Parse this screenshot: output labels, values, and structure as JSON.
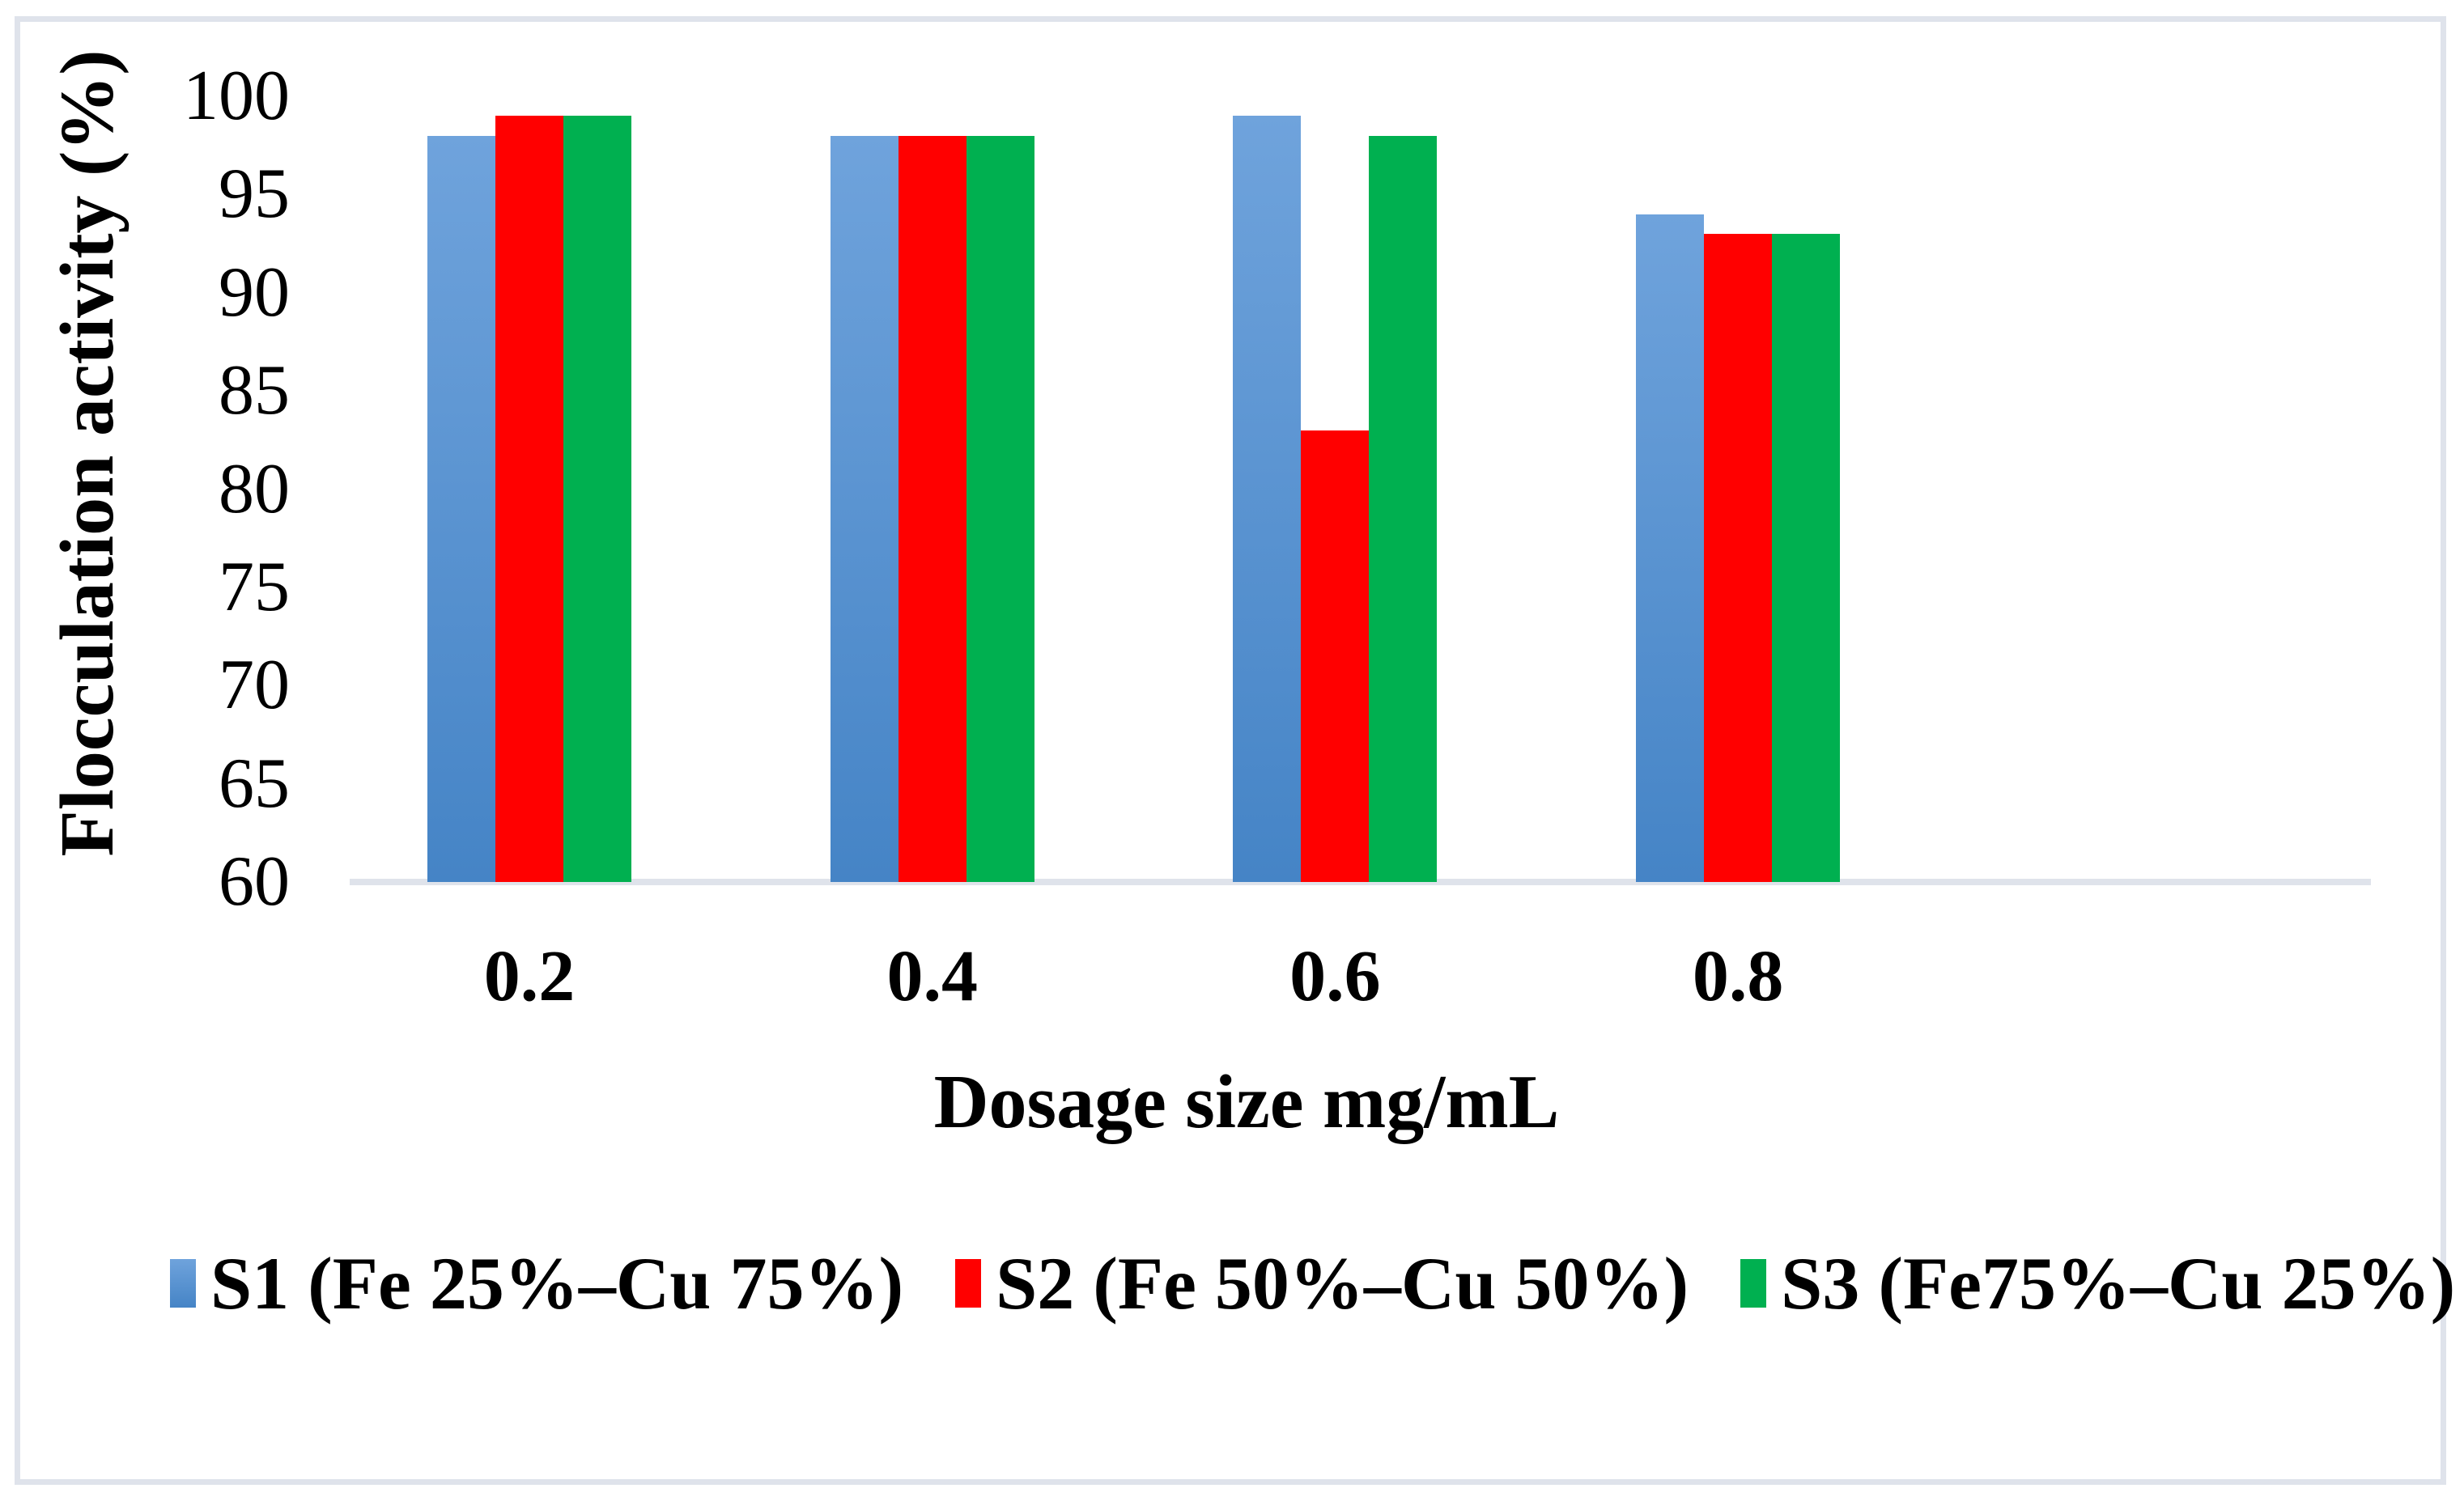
{
  "chart_data": {
    "type": "bar",
    "title": "",
    "xlabel": "Dosage size mg/mL",
    "ylabel": "Flocculation activity (%)",
    "categories": [
      "0.2",
      "0.4",
      "0.6",
      "0.8"
    ],
    "series": [
      {
        "name": "S1 (Fe 25%–Cu 75%)",
        "color": "#5B95CF",
        "gradient_top": "#6FA3DC",
        "gradient_bottom": "#4584C6",
        "values": [
          98,
          98,
          99,
          94
        ]
      },
      {
        "name": "S2 (Fe 50%–Cu 50%)",
        "color": "#FF0000",
        "values": [
          99,
          98,
          83,
          93
        ]
      },
      {
        "name": "S3 (Fe75%–Cu 25%)",
        "color": "#00B050",
        "values": [
          99,
          98,
          98,
          93
        ]
      }
    ],
    "ylim": [
      60,
      100
    ],
    "yticks": [
      100,
      95,
      90,
      85,
      80,
      75,
      70,
      65,
      60
    ],
    "grid": false,
    "legend_position": "bottom",
    "axis_line_color": "#DFE3EB",
    "frame_color": "#DFE3EB",
    "text_color": "#000000"
  }
}
